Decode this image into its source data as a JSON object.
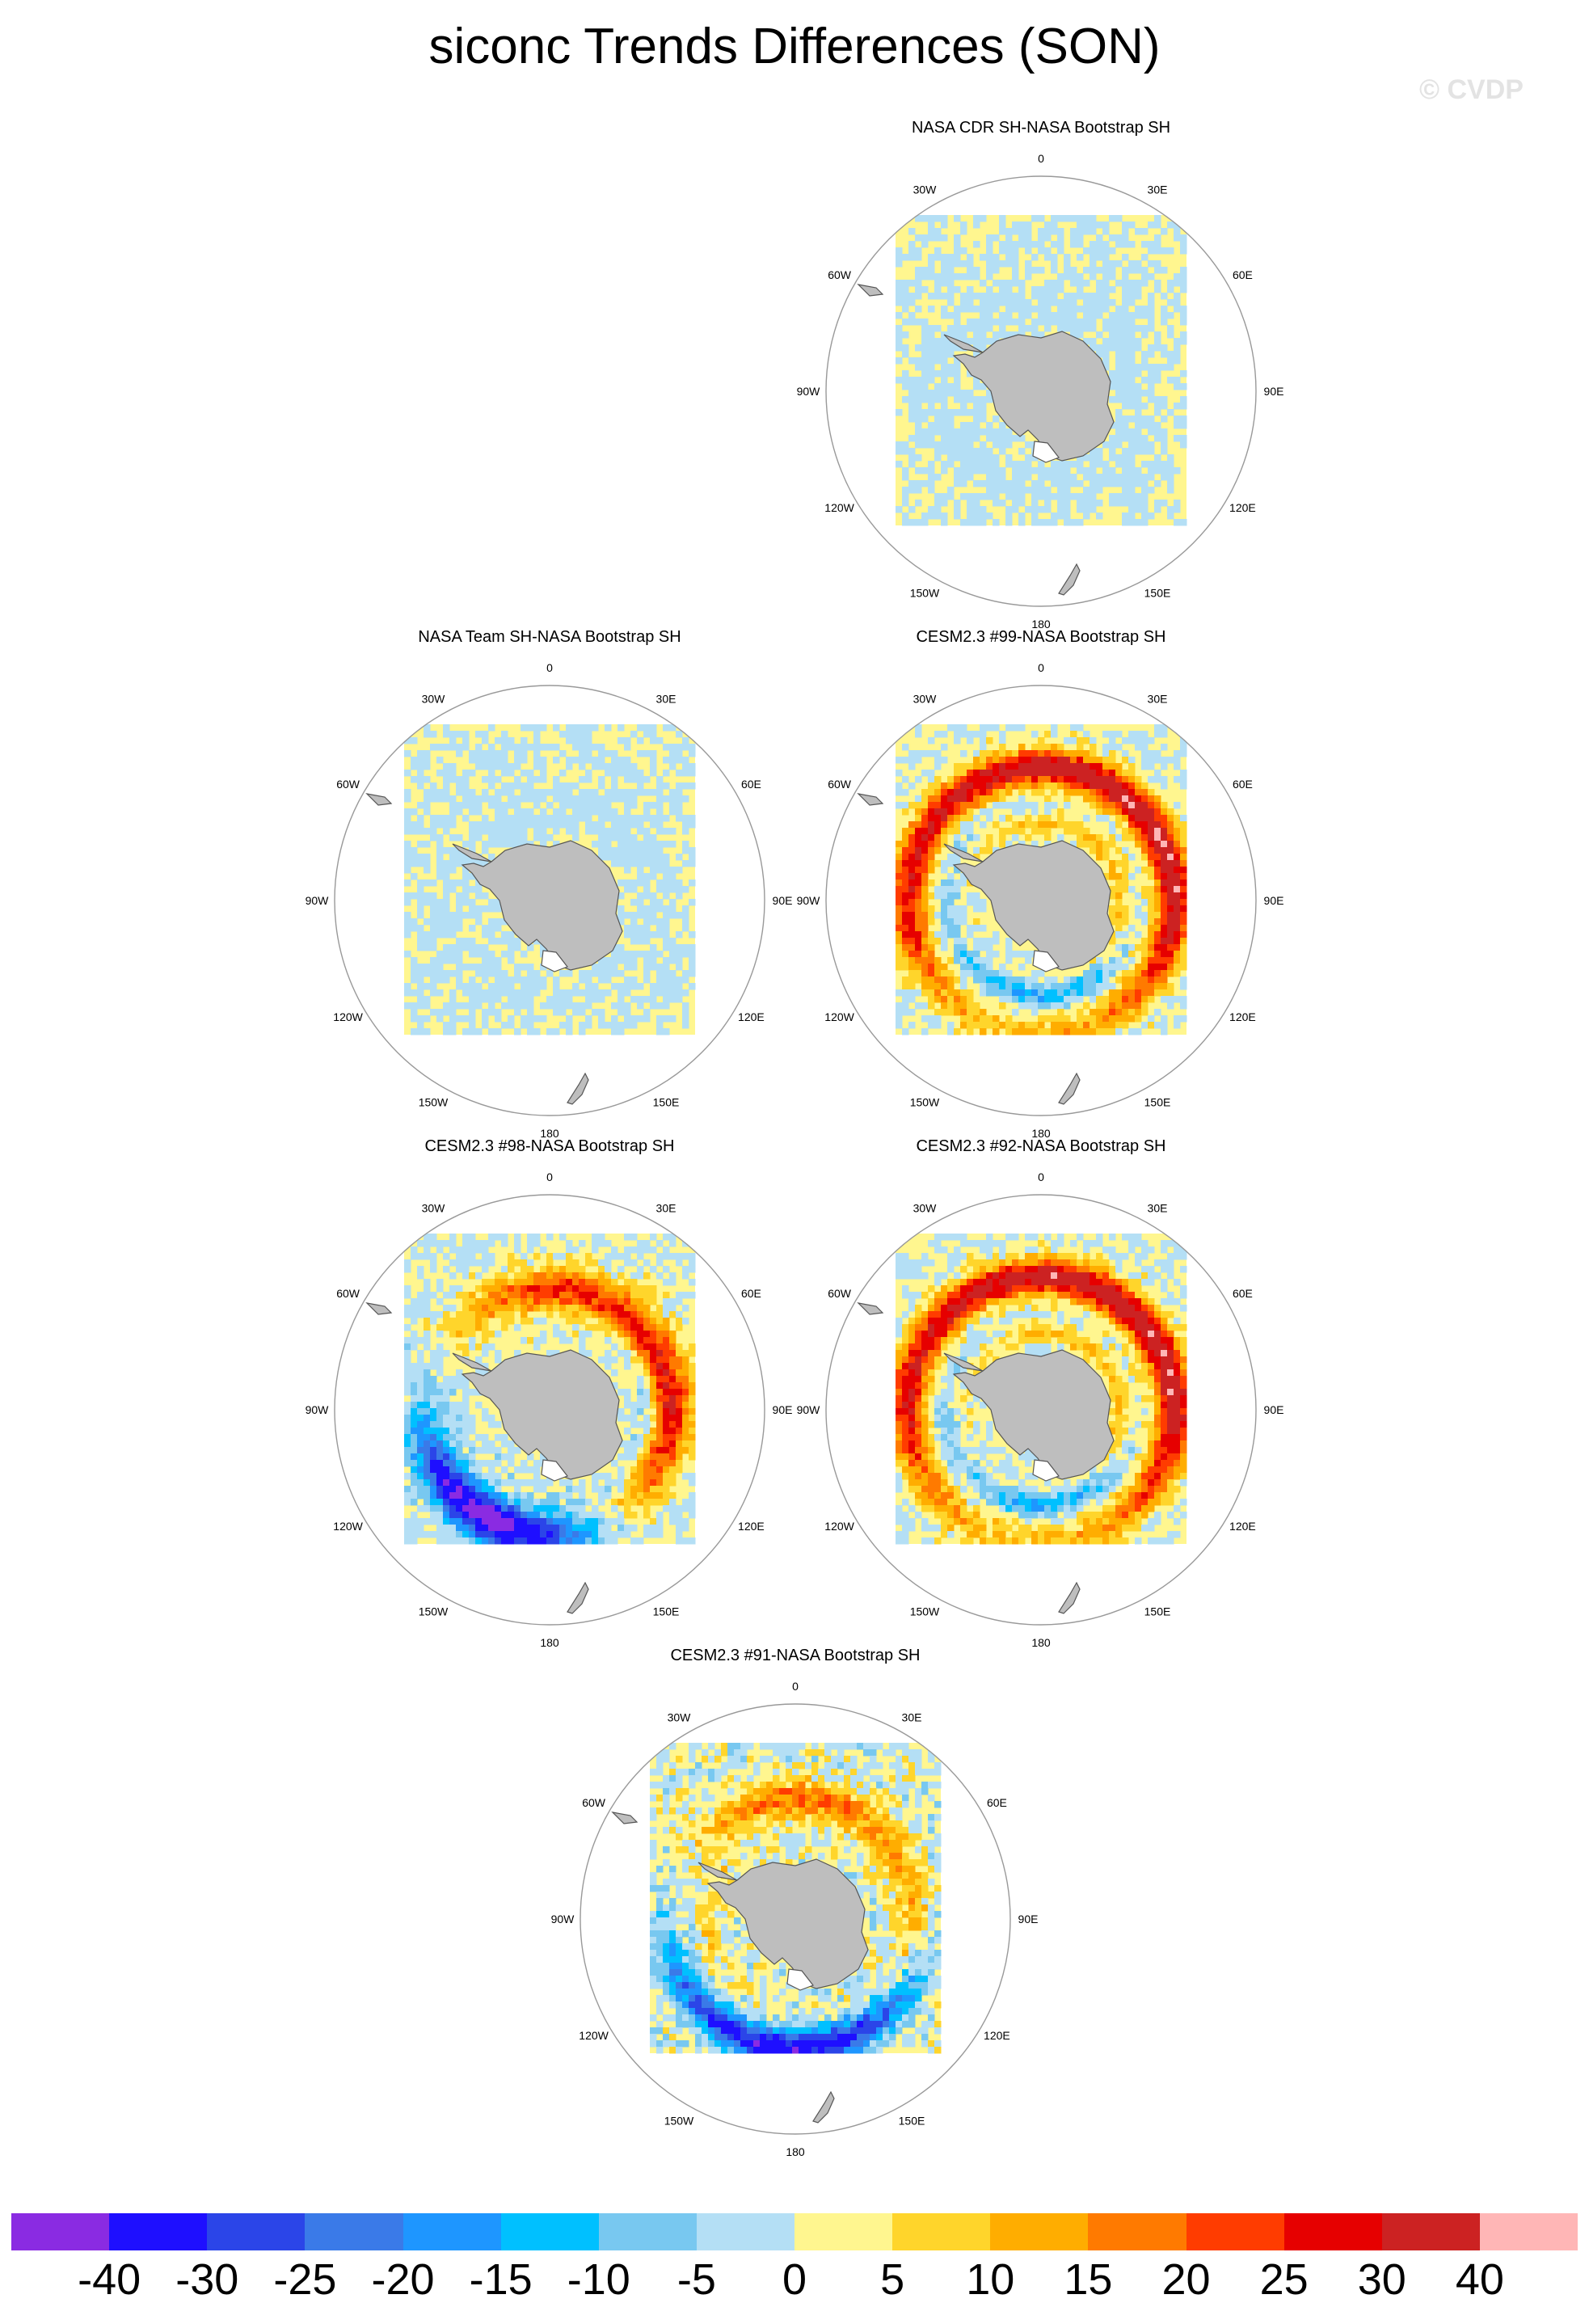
{
  "title": "siconc Trends Differences (SON)",
  "watermark": "© CVDP",
  "longitude_labels": [
    "0",
    "30E",
    "60E",
    "90E",
    "120E",
    "150E",
    "180",
    "150W",
    "120W",
    "90W",
    "60W",
    "30W"
  ],
  "panels": [
    {
      "title": "NASA CDR SH-NASA Bootstrap SH",
      "pattern": "weak-negative"
    },
    {
      "title": "NASA Team SH-NASA Bootstrap SH",
      "pattern": "weak-negative"
    },
    {
      "title": "CESM2.3 #99-NASA Bootstrap SH",
      "pattern": "strong-positive-ring"
    },
    {
      "title": "CESM2.3 #98-NASA Bootstrap SH",
      "pattern": "positive-east-negative-west"
    },
    {
      "title": "CESM2.3 #92-NASA Bootstrap SH",
      "pattern": "strong-positive-ring"
    },
    {
      "title": "CESM2.3 #91-NASA Bootstrap SH",
      "pattern": "mixed-negative-south"
    }
  ],
  "colorbar": {
    "colors": [
      "#8a2be2",
      "#1e0fff",
      "#2b45e8",
      "#3a7ae8",
      "#1e96ff",
      "#00c0ff",
      "#78c8f0",
      "#b4dff5",
      "#fff68f",
      "#ffd52b",
      "#ffad00",
      "#ff7a00",
      "#ff3c00",
      "#e60000",
      "#cc2222",
      "#ffb6b6"
    ],
    "labels": [
      "-40",
      "-30",
      "-25",
      "-20",
      "-15",
      "-10",
      "-5",
      "0",
      "5",
      "10",
      "15",
      "20",
      "25",
      "30",
      "40"
    ]
  },
  "colors": {
    "land": "#bebebe",
    "frame": "#999999",
    "neutral_positive": "#fff68f",
    "neutral_negative": "#b4dff5"
  }
}
